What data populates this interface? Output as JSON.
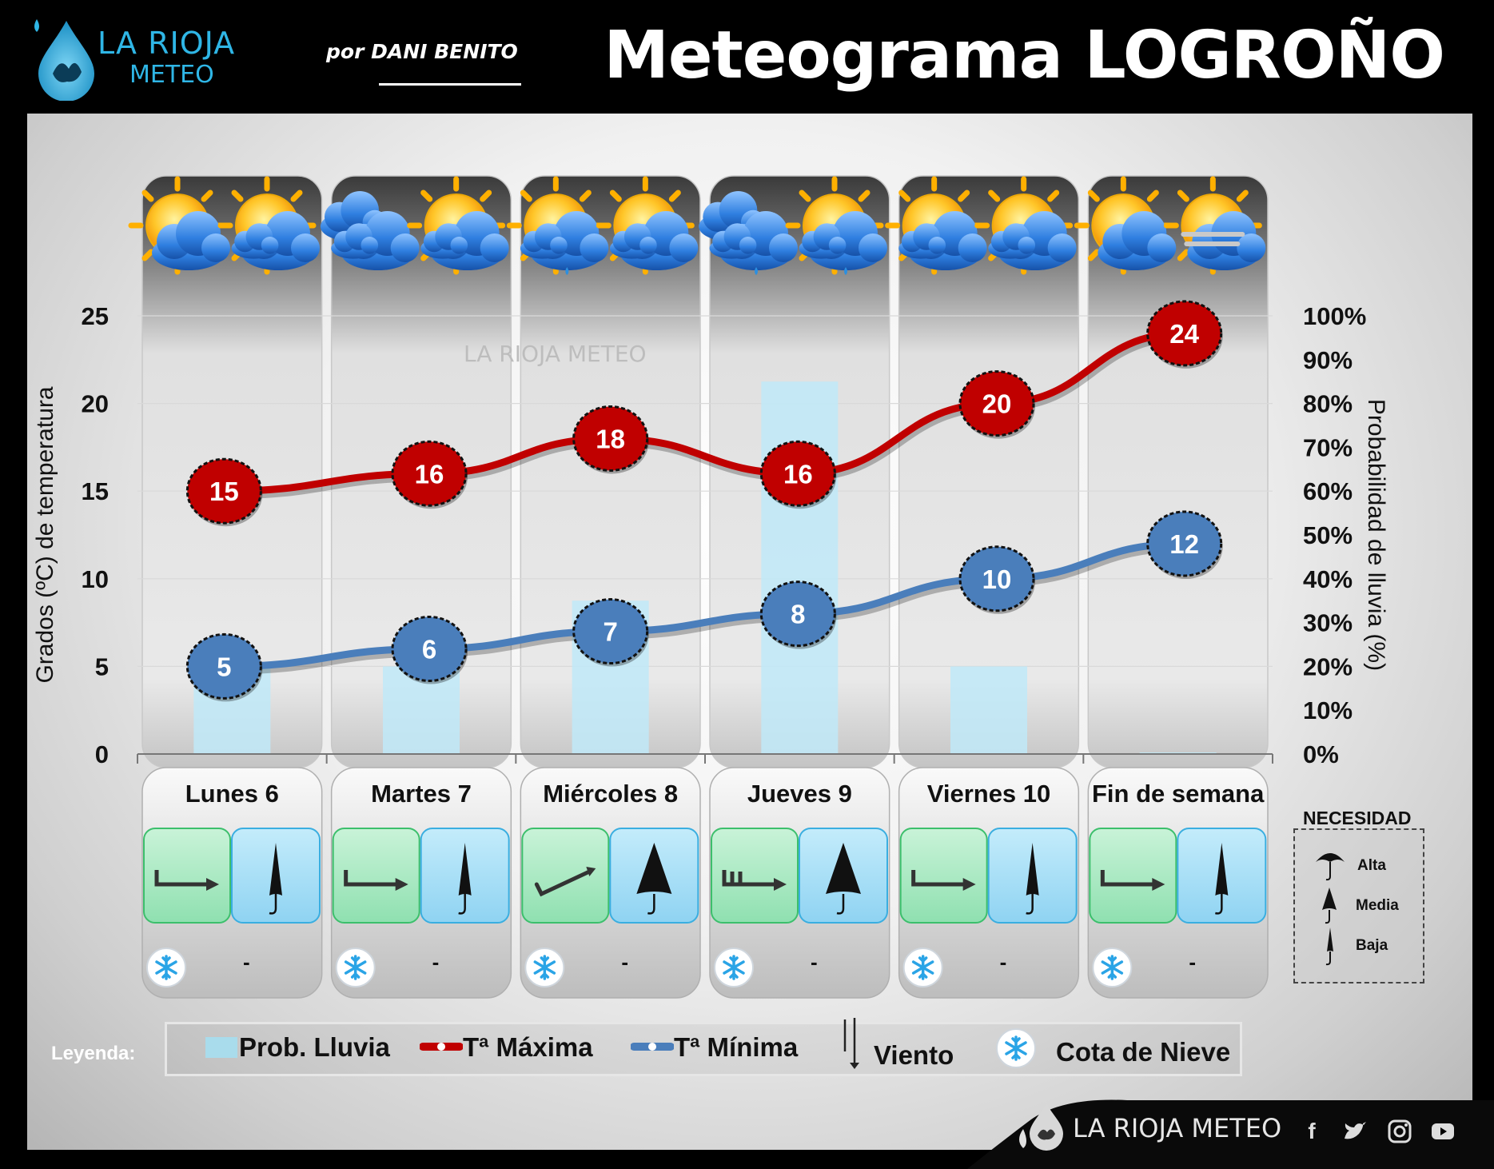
{
  "brand": {
    "logo_line1": "LA RIOJA",
    "logo_line2": "METEO",
    "byline": "por DANI BENITO",
    "footer_brand": "LA RIOJA METEO",
    "watermark": "LA RIOJA METEO"
  },
  "title": "Meteograma LOGROÑO",
  "chart_data": {
    "type": "line",
    "categories": [
      "Lunes 6",
      "Martes 7",
      "Miércoles 8",
      "Jueves 9",
      "Viernes 10",
      "Fin de semana"
    ],
    "series": [
      {
        "name": "Tª Máxima",
        "values": [
          15,
          16,
          18,
          16,
          20,
          24
        ],
        "color": "#c00000",
        "axis": "left"
      },
      {
        "name": "Tª Mínima",
        "values": [
          5,
          6,
          7,
          8,
          10,
          12
        ],
        "color": "#4a7ebb",
        "axis": "left"
      },
      {
        "name": "Prob. Lluvia",
        "type": "bar",
        "values": [
          20,
          20,
          35,
          85,
          20,
          0
        ],
        "color": "#bfe9f8",
        "axis": "right"
      }
    ],
    "ylabel": "Grados (ºC) de temperatura",
    "y2label": "Probabilidad de lluvia (%)",
    "ylim": [
      0,
      25
    ],
    "y2lim": [
      0,
      100
    ],
    "yticks": [
      "0",
      "5",
      "10",
      "15",
      "20",
      "25"
    ],
    "y2ticks": [
      "0%",
      "10%",
      "20%",
      "30%",
      "40%",
      "50%",
      "60%",
      "70%",
      "80%",
      "90%",
      "100%"
    ],
    "weather_icons": [
      [
        "sun-cloud-icon",
        "sun-clouds-icon"
      ],
      [
        "clouds-icon",
        "sun-clouds-icon"
      ],
      [
        "sun-clouds-light-rain-icon",
        "sun-clouds-icon"
      ],
      [
        "clouds-light-rain-icon",
        "sun-clouds-light-rain-icon"
      ],
      [
        "sun-clouds-icon",
        "sun-clouds-icon"
      ],
      [
        "sun-cloud-icon",
        "sun-cloud-fog-icon"
      ]
    ],
    "wind_icons": [
      "wind-west-weak-icon",
      "wind-west-weak-icon",
      "wind-southwest-weak-icon",
      "wind-west-moderate-icon",
      "wind-west-weak-icon",
      "wind-west-weak-icon"
    ],
    "umbrella_need": [
      "Baja",
      "Baja",
      "Media",
      "Media",
      "Baja",
      "Baja"
    ],
    "snow_level": [
      "-",
      "-",
      "-",
      "-",
      "-",
      "-"
    ],
    "grid": true,
    "legend_position": "bottom"
  },
  "legend": {
    "label": "Leyenda:",
    "rain": "Prob. Lluvia",
    "tmax": "Tª Máxima",
    "tmin": "Tª Mínima",
    "wind": "Viento",
    "snow": "Cota de Nieve"
  },
  "necesidad": {
    "title": "NECESIDAD",
    "alta": "Alta",
    "media": "Media",
    "baja": "Baja"
  },
  "social": [
    "facebook-icon",
    "twitter-icon",
    "instagram-icon",
    "youtube-icon"
  ]
}
